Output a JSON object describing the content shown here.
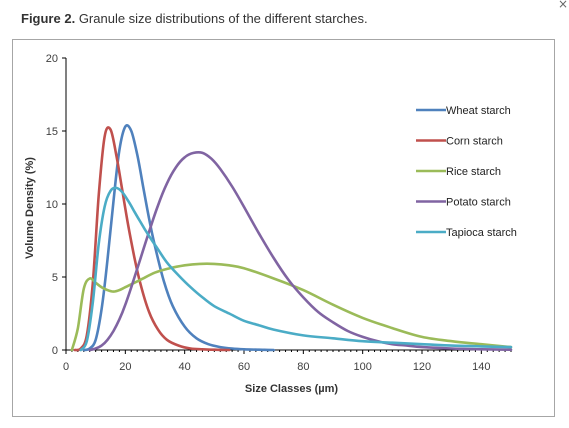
{
  "caption": {
    "label": "Figure 2.",
    "text": "Granule size distributions of the different starches."
  },
  "close_icon": "×",
  "chart_data": {
    "type": "line",
    "xlabel": "Size Classes (µm)",
    "ylabel": "Volume Density (%)",
    "xlim": [
      0,
      150
    ],
    "ylim": [
      0,
      20
    ],
    "x_ticks": [
      0,
      20,
      40,
      60,
      80,
      100,
      120,
      140
    ],
    "y_ticks": [
      0,
      5,
      10,
      15,
      20
    ],
    "grid": false,
    "legend_position": "right",
    "series": [
      {
        "name": "Wheat starch",
        "color": "#4f81bd",
        "x": [
          6,
          8,
          10,
          12,
          14,
          16,
          18,
          20,
          22,
          24,
          26,
          28,
          30,
          33,
          36,
          40,
          44,
          48,
          52,
          56,
          60,
          65,
          70
        ],
        "y": [
          0,
          0.1,
          0.7,
          2.8,
          6.2,
          10.2,
          13.7,
          15.3,
          15.0,
          13.4,
          11.2,
          9.0,
          7.1,
          4.7,
          3.0,
          1.6,
          0.8,
          0.4,
          0.2,
          0.1,
          0.05,
          0.02,
          0
        ]
      },
      {
        "name": "Corn starch",
        "color": "#c0504d",
        "x": [
          3,
          5,
          7,
          9,
          11,
          13,
          15,
          17,
          19,
          21,
          23,
          25,
          28,
          31,
          34,
          38,
          42,
          46,
          50,
          55
        ],
        "y": [
          0,
          0.1,
          1.0,
          4.5,
          10.5,
          14.6,
          15.1,
          13.3,
          10.9,
          8.5,
          6.4,
          4.6,
          2.6,
          1.4,
          0.7,
          0.3,
          0.1,
          0.05,
          0.02,
          0
        ]
      },
      {
        "name": "Rice starch",
        "color": "#9bbb59",
        "x": [
          2,
          4,
          6,
          8,
          10,
          12,
          14,
          16,
          18,
          20,
          25,
          30,
          35,
          40,
          45,
          50,
          55,
          60,
          70,
          80,
          90,
          100,
          110,
          120,
          130,
          140,
          150
        ],
        "y": [
          0,
          1.5,
          4.2,
          4.9,
          4.6,
          4.3,
          4.1,
          4.0,
          4.1,
          4.3,
          4.8,
          5.3,
          5.6,
          5.8,
          5.9,
          5.9,
          5.8,
          5.6,
          4.9,
          4.1,
          3.1,
          2.2,
          1.5,
          0.9,
          0.6,
          0.4,
          0.2
        ]
      },
      {
        "name": "Potato starch",
        "color": "#8064a2",
        "x": [
          8,
          10,
          12,
          14,
          16,
          18,
          20,
          22,
          25,
          28,
          31,
          34,
          37,
          40,
          43,
          46,
          49,
          52,
          56,
          60,
          65,
          70,
          75,
          80,
          85,
          90,
          95,
          100,
          105,
          110,
          115,
          120,
          130,
          140,
          150
        ],
        "y": [
          0,
          0.1,
          0.3,
          0.7,
          1.3,
          2.1,
          3.1,
          4.3,
          6.2,
          8.1,
          9.9,
          11.4,
          12.5,
          13.2,
          13.5,
          13.5,
          13.1,
          12.4,
          11.2,
          9.8,
          8.0,
          6.3,
          4.8,
          3.6,
          2.6,
          1.9,
          1.3,
          0.9,
          0.6,
          0.4,
          0.3,
          0.2,
          0.1,
          0.05,
          0.02
        ]
      },
      {
        "name": "Tapioca starch",
        "color": "#4bacc6",
        "x": [
          5,
          7,
          9,
          11,
          13,
          15,
          17,
          19,
          21,
          23,
          25,
          28,
          31,
          34,
          38,
          42,
          46,
          50,
          55,
          60,
          65,
          70,
          80,
          90,
          100,
          110,
          120,
          130,
          140,
          150
        ],
        "y": [
          0,
          0.6,
          3.2,
          7.2,
          9.8,
          10.9,
          11.1,
          10.8,
          10.2,
          9.5,
          8.8,
          7.8,
          6.9,
          6.0,
          5.1,
          4.3,
          3.6,
          3.0,
          2.5,
          2.0,
          1.7,
          1.4,
          1.0,
          0.8,
          0.6,
          0.5,
          0.4,
          0.3,
          0.25,
          0.2
        ]
      }
    ]
  }
}
